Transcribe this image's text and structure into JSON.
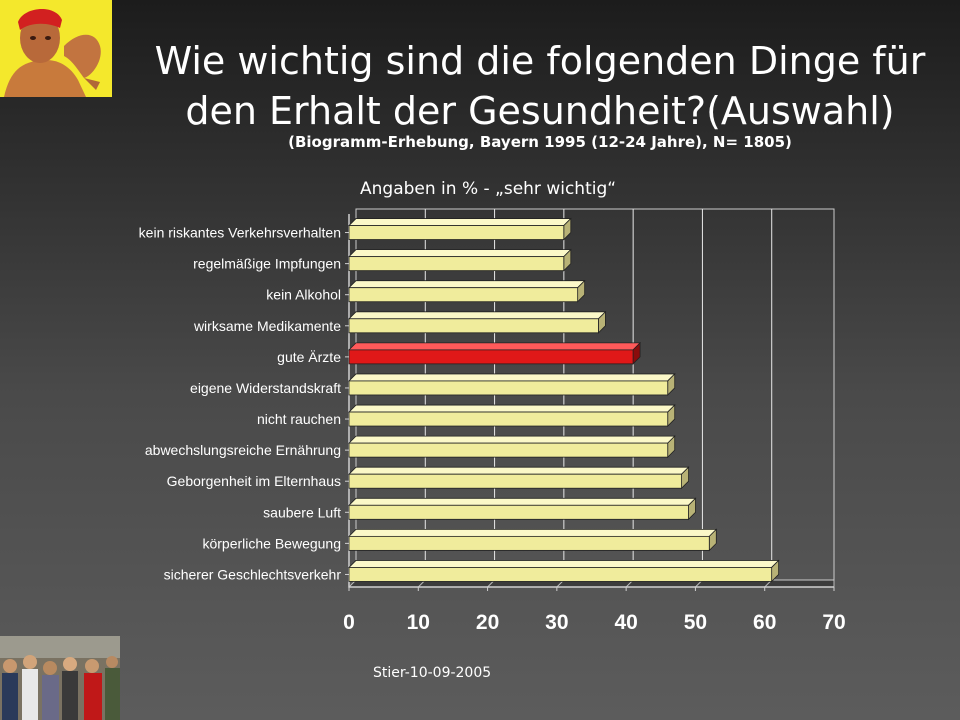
{
  "slide": {
    "title_line1": "Wie wichtig sind die folgenden Dinge für",
    "title_line2": "den Erhalt der Gesundheit?(Auswahl)",
    "subtitle": "(Biogramm-Erhebung, Bayern 1995 (12-24 Jahre), N= 1805)",
    "caption": "Angaben in %  - „sehr wichtig“",
    "footer": "Stier-10-09-2005"
  },
  "colors": {
    "bar": "#f0ec9c",
    "bar_highlight": "#e01818",
    "axis_tick_labels": "#ffffff",
    "category_labels": "#ffffff"
  },
  "chart_data": {
    "type": "bar",
    "orientation": "horizontal",
    "title": "",
    "xlabel": "",
    "ylabel": "",
    "xlim": [
      0,
      70
    ],
    "x_ticks": [
      "0",
      "10",
      "20",
      "30",
      "40",
      "50",
      "60",
      "70"
    ],
    "grid": "vertical gridlines",
    "categories": [
      "kein riskantes Verkehrsverhalten",
      "regelmäßige Impfungen",
      "kein Alkohol",
      "wirksame Medikamente",
      "gute Ärzte",
      "eigene Widerstandskraft",
      "nicht rauchen",
      "abwechslungsreiche Ernährung",
      "Geborgenheit im Elternhaus",
      "saubere Luft",
      "körperliche Bewegung",
      "sicherer Geschlechtsverkehr"
    ],
    "values": [
      31,
      31,
      33,
      36,
      41,
      46,
      46,
      46,
      48,
      49,
      52,
      61
    ],
    "highlight_index": 4
  }
}
